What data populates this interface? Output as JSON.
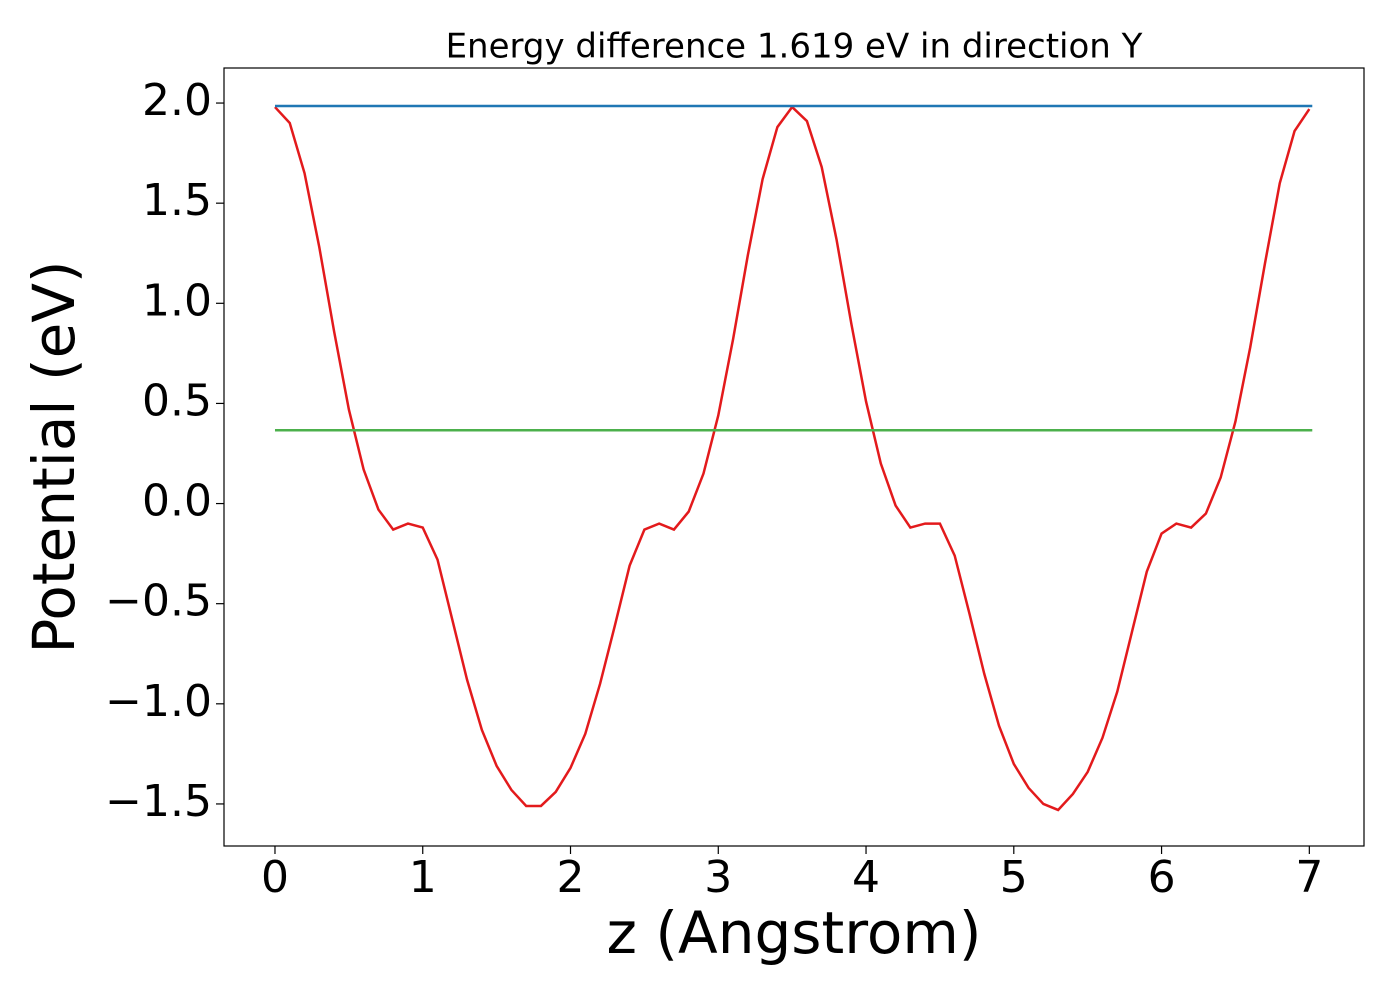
{
  "chart_data": {
    "type": "line",
    "title": "Energy difference 1.619 eV in direction Y",
    "x_label": "z (Angstrom)",
    "y_label": "Potential (eV)",
    "series": [
      {
        "color": "#e31a1c",
        "x": [
          0,
          0.1,
          0.2,
          0.3,
          0.4,
          0.5,
          0.6,
          0.7,
          0.8,
          0.9,
          1.0,
          1.1,
          1.2,
          1.3,
          1.4,
          1.5,
          1.6,
          1.7,
          1.8,
          1.9,
          2.0,
          2.1,
          2.2,
          2.3,
          2.4,
          2.5,
          2.6,
          2.7,
          2.8,
          2.9,
          3.0,
          3.1,
          3.2,
          3.3,
          3.4,
          3.5,
          3.6,
          3.7,
          3.8,
          3.9,
          4.0,
          4.1,
          4.2,
          4.3,
          4.4,
          4.5,
          4.6,
          4.7,
          4.8,
          4.9,
          5.0,
          5.1,
          5.2,
          5.3,
          5.4,
          5.5,
          5.6,
          5.7,
          5.8,
          5.9,
          6.0,
          6.1,
          6.2,
          6.3,
          6.4,
          6.5,
          6.6,
          6.7,
          6.8,
          6.9,
          7.0
        ],
        "values": [
          1.98,
          1.9,
          1.65,
          1.28,
          0.86,
          0.47,
          0.17,
          -0.03,
          -0.13,
          -0.1,
          -0.12,
          -0.28,
          -0.58,
          -0.88,
          -1.13,
          -1.31,
          -1.43,
          -1.51,
          -1.51,
          -1.44,
          -1.32,
          -1.15,
          -0.9,
          -0.61,
          -0.31,
          -0.13,
          -0.1,
          -0.13,
          -0.04,
          0.15,
          0.44,
          0.82,
          1.24,
          1.62,
          1.88,
          1.98,
          1.91,
          1.68,
          1.32,
          0.9,
          0.51,
          0.2,
          -0.01,
          -0.12,
          -0.1,
          -0.1,
          -0.26,
          -0.55,
          -0.85,
          -1.11,
          -1.3,
          -1.42,
          -1.5,
          -1.53,
          -1.45,
          -1.34,
          -1.17,
          -0.94,
          -0.64,
          -0.34,
          -0.15,
          -0.1,
          -0.12,
          -0.05,
          0.13,
          0.41,
          0.78,
          1.2,
          1.6,
          1.86,
          1.97
        ]
      },
      {
        "color": "#1f77b4",
        "x": [
          0,
          7.02
        ],
        "values": [
          1.985,
          1.985
        ]
      },
      {
        "color": "#4cb04c",
        "x": [
          0,
          7.02
        ],
        "values": [
          0.366,
          0.366
        ]
      }
    ],
    "xlim": [
      -0.345,
      7.37
    ],
    "ylim": [
      -1.71,
      2.175
    ],
    "xticks": [
      0,
      1,
      2,
      3,
      4,
      5,
      6,
      7
    ],
    "yticks": [
      {
        "value": -1.5,
        "label": "−1.5"
      },
      {
        "value": -1.0,
        "label": "−1.0"
      },
      {
        "value": -0.5,
        "label": "−0.5"
      },
      {
        "value": 0.0,
        "label": "0.0"
      },
      0.5,
      {
        "value": 1.0,
        "label": "1.0"
      },
      1.5,
      {
        "value": 2.0,
        "label": "2.0"
      }
    ]
  }
}
